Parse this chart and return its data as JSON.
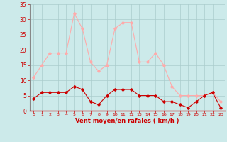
{
  "hours": [
    0,
    1,
    2,
    3,
    4,
    5,
    6,
    7,
    8,
    9,
    10,
    11,
    12,
    13,
    14,
    15,
    16,
    17,
    18,
    19,
    20,
    21,
    22,
    23
  ],
  "wind_avg": [
    4,
    6,
    6,
    6,
    6,
    8,
    7,
    3,
    2,
    5,
    7,
    7,
    7,
    5,
    5,
    5,
    3,
    3,
    2,
    1,
    3,
    5,
    6,
    1
  ],
  "wind_gust": [
    11,
    15,
    19,
    19,
    19,
    32,
    27,
    16,
    13,
    15,
    27,
    29,
    29,
    16,
    16,
    19,
    15,
    8,
    5,
    5,
    5,
    5,
    6,
    3
  ],
  "avg_color": "#cc0000",
  "gust_color": "#ffaaaa",
  "bg_color": "#cceaea",
  "grid_color": "#aacccc",
  "tick_color": "#cc0000",
  "label_color": "#cc0000",
  "spine_color": "#888888",
  "bottom_spine_color": "#cc0000",
  "title": "Vent moyen/en rafales ( km/h )",
  "ylim": [
    0,
    35
  ],
  "yticks": [
    0,
    5,
    10,
    15,
    20,
    25,
    30,
    35
  ],
  "xlim": [
    -0.5,
    23.5
  ]
}
